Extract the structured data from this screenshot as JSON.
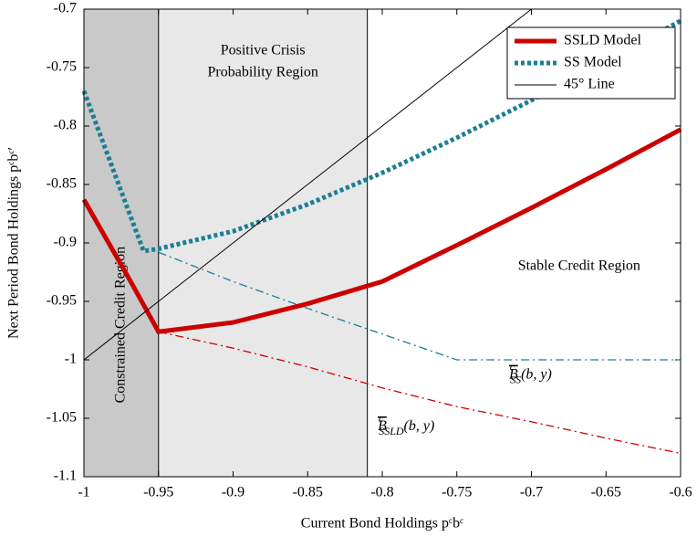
{
  "chart_data": {
    "type": "line",
    "xlabel": "Current Bond Holdings pᶜbᶜ",
    "ylabel": "Next Period Bond Holdings pᶜbᶜ′",
    "x": [
      -1,
      -0.97,
      -0.96,
      -0.95,
      -0.9,
      -0.85,
      -0.8,
      -0.75,
      -0.7,
      -0.65,
      -0.6
    ],
    "series": [
      {
        "name": "SSLD Model",
        "color": "#cc0000",
        "style": "solid",
        "width": 5,
        "values": [
          -0.863,
          -0.93,
          -0.953,
          -0.976,
          -0.968,
          -0.952,
          -0.933,
          -0.902,
          -0.87,
          -0.837,
          -0.803
        ]
      },
      {
        "name": "SS Model",
        "color": "#1a7f94",
        "style": "dotted",
        "width": 5,
        "values": [
          -0.77,
          -0.873,
          -0.907,
          -0.905,
          -0.89,
          -0.867,
          -0.84,
          -0.81,
          -0.778,
          -0.745,
          -0.71
        ]
      },
      {
        "name": "45° Line",
        "color": "#000000",
        "style": "solid",
        "width": 1,
        "values": [
          -1,
          -0.97,
          -0.96,
          -0.95,
          -0.9,
          -0.85,
          -0.8,
          -0.75,
          -0.7,
          null,
          null
        ]
      }
    ],
    "boundaries": [
      {
        "color": "#1a7f94",
        "values": [
          null,
          null,
          null,
          -0.908,
          -0.933,
          -0.956,
          -0.978,
          -1,
          -1,
          -1,
          -1
        ],
        "label": {
          "base": "B",
          "sup": "c",
          "sub": "SS",
          "args": "(b, y)"
        },
        "label_at": [
          -0.715,
          -1.013
        ]
      },
      {
        "color": "#cc0000",
        "values": [
          null,
          null,
          null,
          -0.976,
          -0.99,
          -1.006,
          -1.024,
          -1.04,
          -1.053,
          -1.067,
          -1.08
        ],
        "label": {
          "base": "B",
          "sup": "c",
          "sub": "SSLD",
          "args": "(b, y)"
        },
        "label_at": [
          -0.803,
          -1.057
        ]
      }
    ],
    "regions": [
      {
        "x0": -1,
        "x1": -0.95,
        "color": "#c9c9c9",
        "label": [
          "Constrained Credit Region"
        ],
        "label_at": [
          -0.975,
          -0.97
        ],
        "rotate": true
      },
      {
        "x0": -0.95,
        "x1": -0.81,
        "color": "#e8e8e8",
        "label": [
          "Positive Crisis",
          "Probability Region"
        ],
        "label_at": [
          -0.88,
          -0.745
        ],
        "rotate": false
      }
    ],
    "annotations": [
      {
        "text": "Stable Credit Region",
        "at": [
          -0.668,
          -0.92
        ]
      }
    ],
    "xlim": [
      -1,
      -0.6
    ],
    "ylim": [
      -1.1,
      -0.7
    ],
    "xticks": [
      -1,
      -0.95,
      -0.9,
      -0.85,
      -0.8,
      -0.75,
      -0.7,
      -0.65,
      -0.6
    ],
    "yticks": [
      -1.1,
      -1.05,
      -1,
      -0.95,
      -0.9,
      -0.85,
      -0.8,
      -0.75,
      -0.7
    ],
    "legend": "upper right"
  }
}
